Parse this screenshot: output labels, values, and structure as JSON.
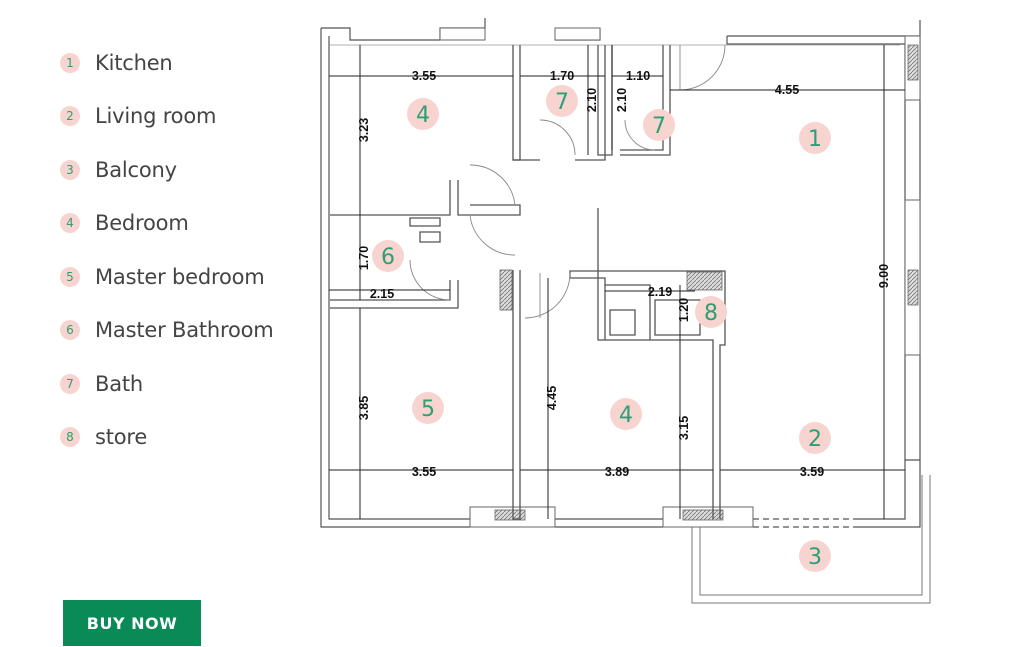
{
  "legend": [
    {
      "num": "1",
      "label": "Kitchen"
    },
    {
      "num": "2",
      "label": "Living room"
    },
    {
      "num": "3",
      "label": "Balcony"
    },
    {
      "num": "4",
      "label": "Bedroom"
    },
    {
      "num": "5",
      "label": "Master bedroom"
    },
    {
      "num": "6",
      "label": "Master Bathroom"
    },
    {
      "num": "7",
      "label": "Bath"
    },
    {
      "num": "8",
      "label": "store"
    }
  ],
  "buy_button": {
    "label": "BUY NOW"
  },
  "dimensions": {
    "d_355_top": "3.55",
    "d_170_top": "1.70",
    "d_110": "1.10",
    "d_455": "4.55",
    "d_210_a": "2.10",
    "d_210_b": "2.10",
    "d_323": "3.23",
    "d_170_left": "1.70",
    "d_215": "2.15",
    "d_219": "2.19",
    "d_120": "1.20",
    "d_900": "9.00",
    "d_385": "3.85",
    "d_445": "4.45",
    "d_315": "3.15",
    "d_355_bot": "3.55",
    "d_389": "3.89",
    "d_359": "3.59"
  },
  "room_markers": {
    "r1": "1",
    "r2": "2",
    "r3": "3",
    "r4a": "4",
    "r4b": "4",
    "r5": "5",
    "r6": "6",
    "r7a": "7",
    "r7b": "7",
    "r8": "8"
  },
  "colors": {
    "accent_green": "#0a8a57",
    "badge_pink": "#f7d4d0",
    "badge_text": "#2e9e73"
  }
}
